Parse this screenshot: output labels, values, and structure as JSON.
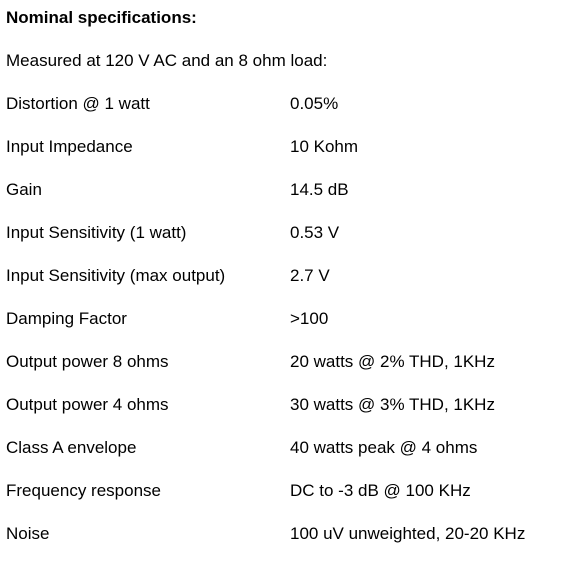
{
  "document": {
    "heading": "Nominal specifications:",
    "intro": "Measured at 120 V AC and an 8 ohm load:",
    "specs": [
      {
        "label": "Distortion @ 1 watt",
        "value": "0.05%"
      },
      {
        "label": "Input Impedance",
        "value": "10 Kohm"
      },
      {
        "label": "Gain",
        "value": "14.5 dB"
      },
      {
        "label": "Input Sensitivity (1 watt)",
        "value": "0.53 V"
      },
      {
        "label": "Input Sensitivity (max output)",
        "value": "2.7 V"
      },
      {
        "label": "Damping Factor",
        "value": ">100"
      },
      {
        "label": "Output power 8 ohms",
        "value": "20 watts @ 2% THD, 1KHz"
      },
      {
        "label": "Output power 4 ohms",
        "value": "30 watts @ 3% THD, 1KHz"
      },
      {
        "label": "Class A envelope",
        "value": "40 watts peak @ 4 ohms"
      },
      {
        "label": "Frequency response",
        "value": "DC to -3 dB @ 100 KHz"
      },
      {
        "label": "Noise",
        "value": "100 uV unweighted, 20-20 KHz"
      }
    ]
  }
}
